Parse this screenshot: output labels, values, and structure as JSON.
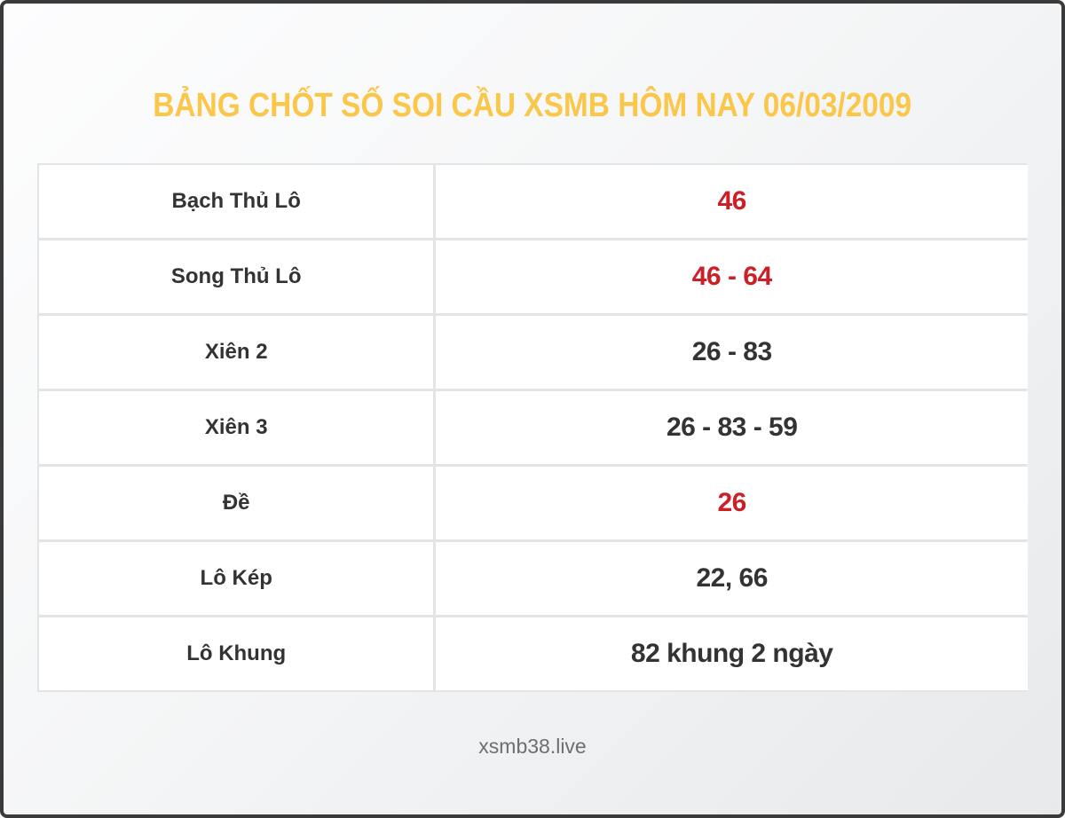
{
  "page": {
    "title": "BẢNG CHỐT SỐ SOI CẦU XSMB HÔM NAY 06/03/2009",
    "footer": "xsmb38.live"
  },
  "colors": {
    "title": "#fbc74a",
    "highlight": "#cb2026",
    "text_dark": "#333333",
    "grid_line": "#e2e4e6",
    "frame": "#3a3a3a",
    "footer": "#6e6e6e"
  },
  "table": {
    "rows": [
      {
        "label": "Bạch Thủ Lô",
        "value": "46",
        "highlight": true
      },
      {
        "label": "Song Thủ Lô",
        "value": "46 - 64",
        "highlight": true
      },
      {
        "label": "Xiên 2",
        "value": "26 - 83",
        "highlight": false
      },
      {
        "label": "Xiên 3",
        "value": "26 - 83 - 59",
        "highlight": false
      },
      {
        "label": "Đề",
        "value": "26",
        "highlight": true
      },
      {
        "label": "Lô Kép",
        "value": "22, 66",
        "highlight": false
      },
      {
        "label": "Lô Khung",
        "value": "82 khung 2 ngày",
        "highlight": false
      }
    ]
  }
}
